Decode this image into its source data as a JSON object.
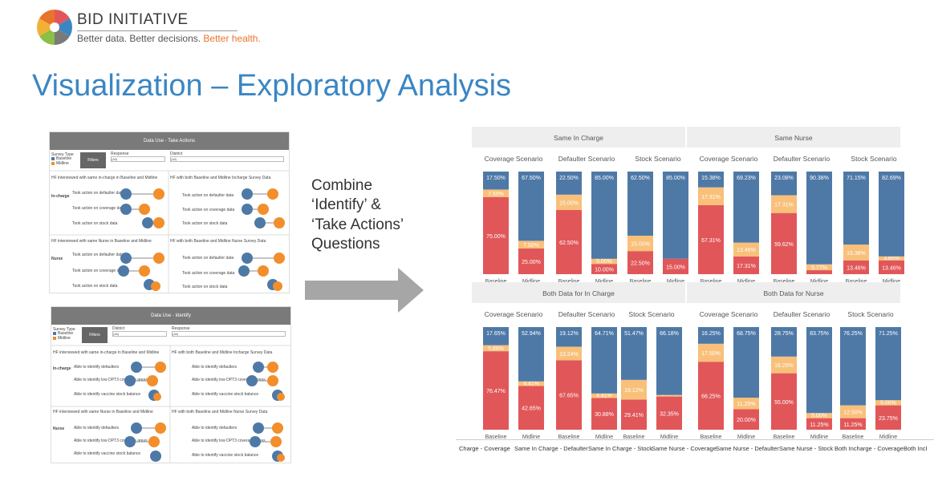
{
  "header": {
    "logo_text": "BID INITIATIVE",
    "tagline_main": "Better data. Better decisions. ",
    "tagline_accent": "Better health.",
    "title": "Visualization – Exploratory Analysis"
  },
  "callout": {
    "line1": "Combine",
    "line2": "‘Identify’  &",
    "line3": "‘Take Actions’",
    "line4": "Questions"
  },
  "thumb_top": {
    "title": "Data Use - Take Actions",
    "filters": "Filters",
    "survey_type": "Survey Type",
    "legend_baseline": "Baseline",
    "legend_midline": "Midline",
    "response": "Response",
    "district": "District",
    "all": "(All)",
    "sec1_left": "HF interviewed with same in-charge in Baseline and Midline",
    "sec1_right": "HF with both Baseline and Midline Incharge Survey Data",
    "sec2_left": "HF interviewed with same Nurse in Baseline and Midline",
    "sec2_right": "HF with both Baseline and Midline Nurse Survey Data",
    "group1": "In-charge",
    "group2": "Nurse",
    "row1": "Took action on defaulter data",
    "row2": "Took action on coverage data",
    "row3": "Took action on stock data"
  },
  "thumb_bottom": {
    "title": "Data Use - Identify",
    "filters": "Filters",
    "survey_type": "Survey Type",
    "legend_baseline": "Baseline",
    "legend_midline": "Midline",
    "response": "Response",
    "district": "District",
    "all": "(All)",
    "sec1_left": "HF interviewed with same in-charge in Baseline and Midline",
    "sec1_right": "HF with both Baseline and Midline Incharge Survey Data",
    "sec2_left": "HF interviewed with same Nurse in Baseline and Midline",
    "sec2_right": "HF with both Baseline and Midline Nurse Survey Data",
    "group1": "In-charge",
    "group2": "Nurse",
    "row1": "Able to identify defaulters",
    "row2": "Able to identify low DPT3 coverage areas",
    "row3": "Able to identify vaccine stock balance"
  },
  "tabs": [
    "Charge - Coverage",
    "Same In Charge - Defaulter",
    "Same In Charge - Stock",
    "Same Nurse - Coverage",
    "Same Nurse - Defaulter",
    "Same Nurse - Stock",
    "Both Incharge - Coverage",
    "Both Incl"
  ],
  "colors": {
    "red": "#e15759",
    "orange": "#f9c07a",
    "blue": "#4e79a7"
  },
  "chart_data": {
    "type": "bar",
    "stacked": true,
    "stack_order_bottom_to_top": [
      "red",
      "orange",
      "blue"
    ],
    "groups": [
      {
        "title": "Same In Charge",
        "scenarios": [
          {
            "name": "Coverage Scenario",
            "bars": [
              {
                "label": "Baseline",
                "red": 75.0,
                "orange": 7.5,
                "blue": 17.5,
                "text": {
                  "red": "75.00%",
                  "orange": "7.50%",
                  "blue": "17.50%"
                }
              },
              {
                "label": "Midline",
                "red": 25.0,
                "orange": 7.5,
                "blue": 67.5,
                "text": {
                  "red": "25.00%",
                  "orange": "7.50%",
                  "blue": "67.50%"
                }
              }
            ]
          },
          {
            "name": "Defaulter Scenario",
            "bars": [
              {
                "label": "Baseline",
                "red": 62.5,
                "orange": 15.0,
                "blue": 22.5,
                "text": {
                  "red": "62.50%",
                  "orange": "15.00%",
                  "blue": "22.50%"
                }
              },
              {
                "label": "Midline",
                "red": 10.0,
                "orange": 5.0,
                "blue": 85.0,
                "text": {
                  "red": "10.00%",
                  "orange": "5.00%",
                  "blue": "85.00%"
                }
              }
            ]
          },
          {
            "name": "Stock Scenario",
            "bars": [
              {
                "label": "Baseline",
                "red": 22.5,
                "orange": 15.0,
                "blue": 62.5,
                "text": {
                  "red": "22.50%",
                  "orange": "15.00%",
                  "blue": "62.50%"
                }
              },
              {
                "label": "Midline",
                "red": 15.0,
                "orange": 0,
                "blue": 85.0,
                "text": {
                  "red": "15.00%",
                  "orange": "",
                  "blue": "85.00%"
                }
              }
            ]
          }
        ]
      },
      {
        "title": "Same Nurse",
        "scenarios": [
          {
            "name": "Coverage Scenario",
            "bars": [
              {
                "label": "Baseline",
                "red": 67.31,
                "orange": 17.31,
                "blue": 15.38,
                "text": {
                  "red": "67.31%",
                  "orange": "17.31%",
                  "blue": "15.38%"
                }
              },
              {
                "label": "Midline",
                "red": 17.31,
                "orange": 13.46,
                "blue": 69.23,
                "text": {
                  "red": "17.31%",
                  "orange": "13.46%",
                  "blue": "69.23%"
                }
              }
            ]
          },
          {
            "name": "Defaulter Scenario",
            "bars": [
              {
                "label": "Baseline",
                "red": 59.62,
                "orange": 17.31,
                "blue": 23.08,
                "text": {
                  "red": "59.62%",
                  "orange": "17.31%",
                  "blue": "23.08%"
                }
              },
              {
                "label": "Midline",
                "red": 3.85,
                "orange": 5.77,
                "blue": 90.38,
                "text": {
                  "red": "",
                  "orange": "5.77%",
                  "blue": "90.38%"
                }
              }
            ]
          },
          {
            "name": "Stock Scenario",
            "bars": [
              {
                "label": "Baseline",
                "red": 13.46,
                "orange": 15.38,
                "blue": 71.15,
                "text": {
                  "red": "13.46%",
                  "orange": "15.38%",
                  "blue": "71.15%"
                }
              },
              {
                "label": "Midline",
                "red": 13.46,
                "orange": 3.85,
                "blue": 82.69,
                "text": {
                  "red": "13.46%",
                  "orange": "3.85%",
                  "blue": "82.69%"
                }
              }
            ]
          }
        ]
      },
      {
        "title": "Both Data for In Charge",
        "scenarios": [
          {
            "name": "Coverage Scenario",
            "bars": [
              {
                "label": "Baseline",
                "red": 76.47,
                "orange": 5.88,
                "blue": 17.65,
                "text": {
                  "red": "76.47%",
                  "orange": "5.88%",
                  "blue": "17.65%"
                }
              },
              {
                "label": "Midline",
                "red": 42.65,
                "orange": 4.41,
                "blue": 52.94,
                "text": {
                  "red": "42.65%",
                  "orange": "4.41%",
                  "blue": "52.94%"
                }
              }
            ]
          },
          {
            "name": "Defaulter Scenario",
            "bars": [
              {
                "label": "Baseline",
                "red": 67.65,
                "orange": 13.24,
                "blue": 19.12,
                "text": {
                  "red": "67.65%",
                  "orange": "13.24%",
                  "blue": "19.12%"
                }
              },
              {
                "label": "Midline",
                "red": 30.88,
                "orange": 4.41,
                "blue": 64.71,
                "text": {
                  "red": "30.88%",
                  "orange": "4.41%",
                  "blue": "64.71%"
                }
              }
            ]
          },
          {
            "name": "Stock Scenario",
            "bars": [
              {
                "label": "Baseline",
                "red": 29.41,
                "orange": 19.12,
                "blue": 51.47,
                "text": {
                  "red": "29.41%",
                  "orange": "19.12%",
                  "blue": "51.47%"
                }
              },
              {
                "label": "Midline",
                "red": 32.35,
                "orange": 1.47,
                "blue": 66.18,
                "text": {
                  "red": "32.35%",
                  "orange": "1.47%",
                  "blue": "66.18%"
                }
              }
            ]
          }
        ]
      },
      {
        "title": "Both Data for Nurse",
        "scenarios": [
          {
            "name": "Coverage Scenario",
            "bars": [
              {
                "label": "Baseline",
                "red": 66.25,
                "orange": 17.5,
                "blue": 16.25,
                "text": {
                  "red": "66.25%",
                  "orange": "17.50%",
                  "blue": "16.25%"
                }
              },
              {
                "label": "Midline",
                "red": 20.0,
                "orange": 11.25,
                "blue": 68.75,
                "text": {
                  "red": "20.00%",
                  "orange": "11.25%",
                  "blue": "68.75%"
                }
              }
            ]
          },
          {
            "name": "Defaulter Scenario",
            "bars": [
              {
                "label": "Baseline",
                "red": 55.0,
                "orange": 16.25,
                "blue": 28.75,
                "text": {
                  "red": "55.00%",
                  "orange": "16.25%",
                  "blue": "28.75%"
                }
              },
              {
                "label": "Midline",
                "red": 11.25,
                "orange": 5.0,
                "blue": 83.75,
                "text": {
                  "red": "11.25%",
                  "orange": "5.00%",
                  "blue": "83.75%"
                }
              }
            ]
          },
          {
            "name": "Stock Scenario",
            "bars": [
              {
                "label": "Baseline",
                "red": 11.25,
                "orange": 12.5,
                "blue": 76.25,
                "text": {
                  "red": "11.25%",
                  "orange": "12.50%",
                  "blue": "76.25%"
                }
              },
              {
                "label": "Midline",
                "red": 23.75,
                "orange": 5.0,
                "blue": 71.25,
                "text": {
                  "red": "23.75%",
                  "orange": "5.00%",
                  "blue": "71.25%"
                }
              }
            ]
          }
        ]
      }
    ]
  }
}
